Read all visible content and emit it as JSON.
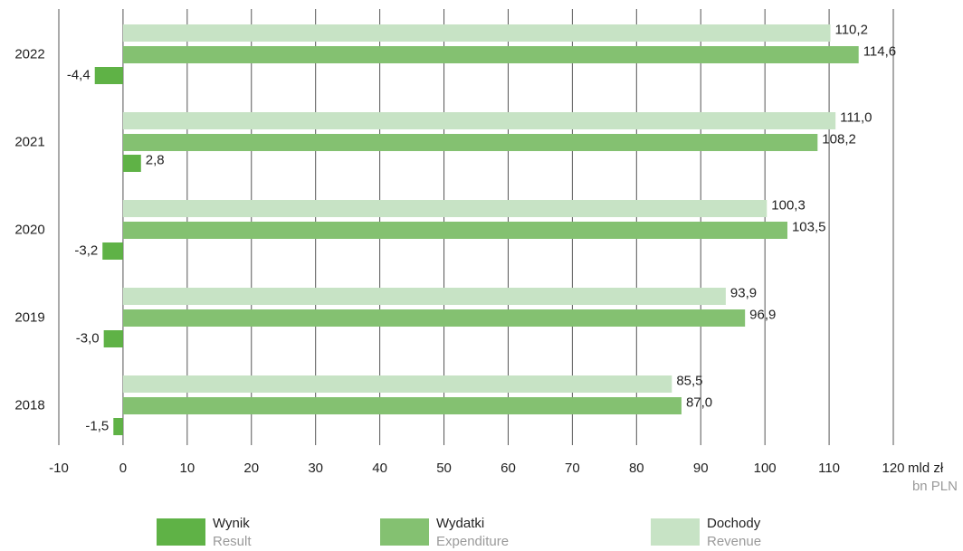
{
  "chart_data": {
    "type": "hbar",
    "categories": [
      "2022",
      "2021",
      "2020",
      "2019",
      "2018"
    ],
    "series": [
      {
        "name": "Wynik",
        "name_en": "Result",
        "color": "#5fb246",
        "values": [
          -4.4,
          2.8,
          -3.2,
          -3.0,
          -1.5
        ],
        "value_labels": [
          "-4,4",
          "2,8",
          "-3,2",
          "-3,0",
          "-1,5"
        ]
      },
      {
        "name": "Wydatki",
        "name_en": "Expenditure",
        "color": "#84c171",
        "values": [
          114.6,
          108.2,
          103.5,
          96.9,
          87.0
        ],
        "value_labels": [
          "114,6",
          "108,2",
          "103,5",
          "96,9",
          "87,0"
        ]
      },
      {
        "name": "Dochody",
        "name_en": "Revenue",
        "color": "#c7e3c5",
        "values": [
          110.2,
          111.0,
          100.3,
          93.9,
          85.5
        ],
        "value_labels": [
          "110,2",
          "111,0",
          "100,3",
          "93,9",
          "85,5"
        ]
      }
    ],
    "xlim": [
      -10,
      120
    ],
    "xticks": [
      -10,
      0,
      10,
      20,
      30,
      40,
      50,
      60,
      70,
      80,
      90,
      100,
      110,
      120
    ],
    "unit": "mld zł",
    "unit_en": "bn PLN",
    "grid": true
  }
}
